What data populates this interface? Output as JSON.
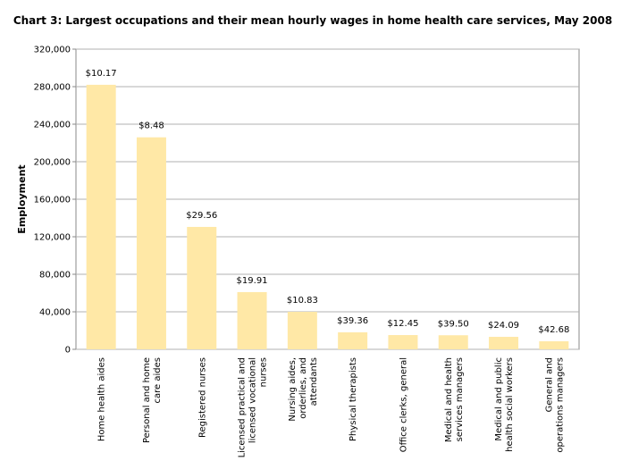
{
  "chart_data": {
    "type": "bar",
    "title": "Chart 3: Largest occupations and their mean hourly wages in home health care services, May 2008",
    "y_label": "Employment",
    "categories": [
      "Home health aides",
      "Personal and home\ncare aides",
      "Registered nurses",
      "Licensed practical and\nlicensed vocational\nnurses",
      "Nursing aides,\norderlies, and\nattendants",
      "Physical therapists",
      "Office clerks, general",
      "Medical and health\nservices managers",
      "Medical and public\nhealth social workers",
      "General and\noperations managers"
    ],
    "values": [
      282000,
      226000,
      130500,
      61000,
      40000,
      18100,
      15200,
      15000,
      13300,
      8600
    ],
    "annotations": [
      "$10.17",
      "$8.48",
      "$29.56",
      "$19.91",
      "$10.83",
      "$39.36",
      "$12.45",
      "$39.50",
      "$24.09",
      "$42.68"
    ],
    "color": "#ffe8a6",
    "ylim": [
      0,
      320000
    ],
    "yticks": [
      0,
      {
        "value": 40000,
        "label": "40,000"
      },
      {
        "value": 80000,
        "label": "80,000"
      },
      {
        "value": 120000,
        "label": "120,000"
      },
      {
        "value": 160000,
        "label": "160,000"
      },
      {
        "value": 200000,
        "label": "200,000"
      },
      {
        "value": 240000,
        "label": "240,000"
      },
      {
        "value": 280000,
        "label": "280,000"
      },
      {
        "value": 320000,
        "label": "320,000"
      }
    ],
    "grid": true
  }
}
